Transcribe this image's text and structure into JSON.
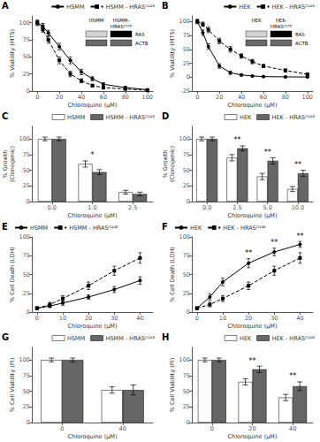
{
  "chart_data": [
    {
      "type": "line",
      "title": "A",
      "xlabel": "Chloroquine (μM)",
      "ylabel": "% Viability (MTS)",
      "x": [
        0,
        5,
        10,
        20,
        30,
        40,
        50,
        60,
        80,
        100
      ],
      "series": [
        {
          "name": "HSMM",
          "color": "#000000",
          "marker": "circle",
          "line_style": "solid",
          "values": [
            100,
            95,
            85,
            65,
            45,
            28,
            18,
            10,
            5,
            2
          ],
          "errors": [
            3,
            4,
            4,
            5,
            5,
            4,
            3,
            2,
            2,
            1
          ]
        },
        {
          "name": "HSMM - HRASᴳ¹²ᵝ",
          "color": "#000000",
          "marker": "square",
          "line_style": "dashed",
          "values": [
            100,
            90,
            75,
            45,
            25,
            15,
            8,
            5,
            3,
            1
          ],
          "errors": [
            4,
            4,
            5,
            5,
            4,
            3,
            2,
            2,
            1,
            1
          ]
        }
      ],
      "xlim": [
        -5,
        105
      ],
      "xticks": [
        0,
        20,
        40,
        60,
        80,
        100
      ],
      "ylim": [
        0,
        110
      ],
      "yticks": [
        0,
        25,
        50,
        75,
        100
      ],
      "grid": false,
      "legend": "upper right",
      "blot": {
        "lanes": [
          "HSMM",
          "HSMM-\nHRASᴳ¹²ᵝ"
        ],
        "bands": [
          {
            "name": "RAS",
            "present": [
              false,
              true
            ]
          },
          {
            "name": "ACTB",
            "present": [
              true,
              true
            ]
          }
        ]
      }
    },
    {
      "type": "line",
      "title": "B",
      "xlabel": "Chloroquine (μM)",
      "ylabel": "% Viability (MTS)",
      "x": [
        0,
        5,
        10,
        20,
        30,
        40,
        50,
        60,
        80,
        100
      ],
      "series": [
        {
          "name": "HEK",
          "color": "#000000",
          "marker": "circle",
          "line_style": "solid",
          "values": [
            100,
            80,
            55,
            20,
            8,
            4,
            2,
            1,
            0.5,
            0.2
          ],
          "errors": [
            4,
            5,
            5,
            4,
            3,
            2,
            1,
            1,
            1,
            0.5
          ]
        },
        {
          "name": "HEK - HRASᴳ¹²ᵝ",
          "color": "#000000",
          "marker": "square",
          "line_style": "dashed",
          "values": [
            100,
            95,
            85,
            65,
            50,
            38,
            28,
            20,
            12,
            5
          ],
          "errors": [
            3,
            4,
            5,
            5,
            5,
            4,
            4,
            3,
            3,
            2
          ]
        }
      ],
      "xlim": [
        -5,
        105
      ],
      "xticks": [
        0,
        20,
        40,
        60,
        80,
        100
      ],
      "ylim": [
        -25,
        110
      ],
      "yticks": [
        -25,
        0,
        25,
        50,
        75,
        100
      ],
      "grid": false,
      "legend": "upper right",
      "blot": {
        "lanes": [
          "HEK",
          "HEK-\nHRASᴳ¹²ᵝ"
        ],
        "bands": [
          {
            "name": "RAS",
            "present": [
              false,
              true
            ]
          },
          {
            "name": "ACTB",
            "present": [
              true,
              true
            ]
          }
        ]
      }
    },
    {
      "type": "bar",
      "title": "C",
      "xlabel": "Chloroquine (μM)",
      "ylabel": "% Growth\n(Clonogenic)",
      "categories": [
        "0.0",
        "1.0",
        "2.5"
      ],
      "series": [
        {
          "name": "HSMM",
          "color": "#ffffff",
          "values": [
            100,
            60,
            15
          ],
          "errors": [
            3,
            5,
            3
          ]
        },
        {
          "name": "HSMM - HRASᴳ¹²ᵝ",
          "color": "#666666",
          "values": [
            100,
            47,
            12
          ],
          "errors": [
            3,
            4,
            3
          ]
        }
      ],
      "ylim": [
        0,
        120
      ],
      "yticks": [
        0,
        25,
        50,
        75,
        100
      ],
      "grid": false,
      "legend": "upper right",
      "annotations": [
        {
          "x": "1.0",
          "text": "*"
        }
      ]
    },
    {
      "type": "bar",
      "title": "D",
      "xlabel": "Chloroquine (μM)",
      "ylabel": "% Growth\n(Clonogenic)",
      "categories": [
        "0.0",
        "2.5",
        "5.0",
        "10.0"
      ],
      "series": [
        {
          "name": "HEK",
          "color": "#ffffff",
          "values": [
            100,
            70,
            40,
            20
          ],
          "errors": [
            3,
            5,
            5,
            4
          ]
        },
        {
          "name": "HEK - HRASᴳ¹²ᵝ",
          "color": "#666666",
          "values": [
            100,
            85,
            65,
            45
          ],
          "errors": [
            3,
            4,
            5,
            5
          ]
        }
      ],
      "ylim": [
        0,
        120
      ],
      "yticks": [
        0,
        25,
        50,
        75,
        100
      ],
      "grid": false,
      "legend": "upper right",
      "annotations": [
        {
          "x": "2.5",
          "text": "**"
        },
        {
          "x": "5.0",
          "text": "**"
        },
        {
          "x": "10.0",
          "text": "**"
        }
      ]
    },
    {
      "type": "line",
      "title": "E",
      "xlabel": "Chloroquine (μM)",
      "ylabel": "% Cell Death (LDH)",
      "x": [
        0,
        5,
        10,
        20,
        30,
        40
      ],
      "series": [
        {
          "name": "HSMM",
          "color": "#000000",
          "marker": "circle",
          "line_style": "solid",
          "values": [
            5,
            8,
            12,
            20,
            30,
            42
          ],
          "errors": [
            2,
            2,
            3,
            3,
            4,
            5
          ]
        },
        {
          "name": "HSMM - HRASᴳ¹²ᵝ",
          "color": "#000000",
          "marker": "square",
          "line_style": "dashed",
          "values": [
            5,
            10,
            18,
            35,
            55,
            72
          ],
          "errors": [
            2,
            3,
            4,
            5,
            6,
            7
          ]
        }
      ],
      "xlim": [
        -2,
        45
      ],
      "xticks": [
        0,
        10,
        20,
        30,
        40
      ],
      "ylim": [
        0,
        100
      ],
      "yticks": [
        0,
        25,
        50,
        75,
        100
      ],
      "grid": false,
      "legend": "upper left"
    },
    {
      "type": "line",
      "title": "F",
      "xlabel": "Chloroquine (μM)",
      "ylabel": "% Cell Death (LDH)",
      "x": [
        0,
        5,
        10,
        20,
        30,
        40
      ],
      "series": [
        {
          "name": "HEK",
          "color": "#000000",
          "marker": "circle",
          "line_style": "solid",
          "values": [
            5,
            20,
            40,
            65,
            80,
            90
          ],
          "errors": [
            2,
            4,
            5,
            6,
            5,
            4
          ]
        },
        {
          "name": "HEK - HRASᴳ¹²ᵝ",
          "color": "#000000",
          "marker": "square",
          "line_style": "dashed",
          "values": [
            5,
            10,
            18,
            35,
            55,
            72
          ],
          "errors": [
            2,
            3,
            4,
            5,
            6,
            7
          ]
        }
      ],
      "xlim": [
        -2,
        45
      ],
      "xticks": [
        0,
        10,
        20,
        30,
        40
      ],
      "ylim": [
        0,
        100
      ],
      "yticks": [
        0,
        25,
        50,
        75,
        100
      ],
      "grid": false,
      "legend": "upper left",
      "annotations": [
        {
          "x": 20,
          "text": "**"
        },
        {
          "x": 30,
          "text": "**"
        },
        {
          "x": 40,
          "text": "**"
        }
      ]
    },
    {
      "type": "bar",
      "title": "G",
      "xlabel": "Chloroquine (μM)",
      "ylabel": "% Cell Viability (PI)",
      "categories": [
        "0",
        "40"
      ],
      "series": [
        {
          "name": "HSMM",
          "color": "#ffffff",
          "values": [
            100,
            52
          ],
          "errors": [
            3,
            5
          ]
        },
        {
          "name": "HSMM - HRASᴳ¹²ᵝ",
          "color": "#666666",
          "values": [
            100,
            52
          ],
          "errors": [
            3,
            8
          ]
        }
      ],
      "ylim": [
        0,
        120
      ],
      "yticks": [
        0,
        25,
        50,
        75,
        100
      ],
      "grid": false,
      "legend": "upper right"
    },
    {
      "type": "bar",
      "title": "H",
      "xlabel": "Chloroquine (μM)",
      "ylabel": "% Cell Viability (PI)",
      "categories": [
        "0",
        "20",
        "40"
      ],
      "series": [
        {
          "name": "HEK",
          "color": "#ffffff",
          "values": [
            100,
            65,
            40
          ],
          "errors": [
            3,
            5,
            5
          ]
        },
        {
          "name": "HEK - HRASᴳ¹²ᵝ",
          "color": "#666666",
          "values": [
            100,
            85,
            58
          ],
          "errors": [
            3,
            5,
            7
          ]
        }
      ],
      "ylim": [
        0,
        120
      ],
      "yticks": [
        0,
        25,
        50,
        75,
        100
      ],
      "grid": false,
      "legend": "upper right",
      "annotations": [
        {
          "x": "20",
          "text": "**"
        },
        {
          "x": "40",
          "text": "**"
        }
      ]
    }
  ]
}
